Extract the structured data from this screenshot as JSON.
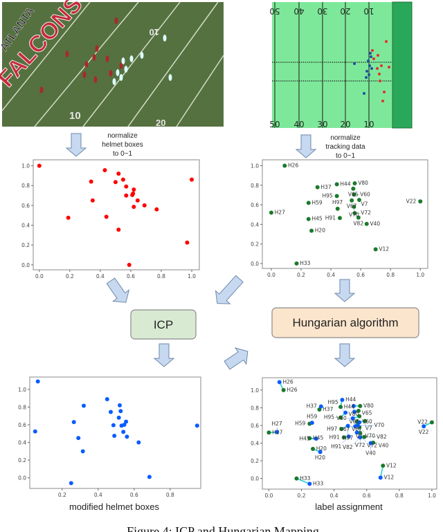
{
  "photo": {
    "logo_text_1": "ATLANTA",
    "logo_text_2": "FALCONS",
    "yard_numbers": [
      "10",
      "10",
      "20"
    ]
  },
  "field": {
    "yard_numbers": [
      "50",
      "40",
      "30",
      "20",
      "10"
    ],
    "colors": {
      "field": "#7ee89a",
      "endzone": "#2aa85a",
      "helmet_team_a": "#e03030",
      "helmet_team_b": "#1f4fa0"
    }
  },
  "notes": {
    "left": [
      "normalize",
      "helmet boxes",
      "to 0~1"
    ],
    "right": [
      "normalize",
      "tracking data",
      "to 0~1"
    ]
  },
  "boxes": {
    "icp": {
      "label": "ICP",
      "fill": "#d9ead3"
    },
    "hungarian": {
      "label": "Hungarian algorithm",
      "fill": "#fce5cd"
    }
  },
  "caption": "Figure 4: ICP and Hungarian Mapping",
  "chart_data": [
    {
      "id": "helmet-normalized",
      "type": "scatter",
      "color": "#ff0000",
      "xlim": [
        -0.04,
        1.05
      ],
      "ylim": [
        -0.05,
        1.06
      ],
      "xticks": [
        0,
        0.2,
        0.4,
        0.6,
        0.8,
        1.0
      ],
      "yticks": [
        0,
        0.2,
        0.4,
        0.6,
        0.8,
        1.0
      ],
      "xlabel": "",
      "points": [
        [
          0,
          1
        ],
        [
          0.43,
          0.955
        ],
        [
          0.52,
          0.92
        ],
        [
          0.34,
          0.84
        ],
        [
          0.5,
          0.835
        ],
        [
          0.55,
          0.86
        ],
        [
          0.57,
          0.79
        ],
        [
          0.62,
          0.76
        ],
        [
          0.615,
          0.72
        ],
        [
          0.61,
          0.705
        ],
        [
          0.57,
          0.7
        ],
        [
          0.35,
          0.65
        ],
        [
          0.645,
          0.65
        ],
        [
          0.69,
          0.6
        ],
        [
          0.62,
          0.585
        ],
        [
          0.77,
          0.56
        ],
        [
          0.19,
          0.475
        ],
        [
          0.44,
          0.485
        ],
        [
          0.52,
          0.355
        ],
        [
          0.97,
          0.225
        ],
        [
          0.59,
          0
        ],
        [
          1.0,
          0.86
        ]
      ]
    },
    {
      "id": "tracking-normalized",
      "type": "scatter",
      "color": "#1a7a2a",
      "xlim": [
        -0.06,
        1.05
      ],
      "ylim": [
        -0.05,
        1.06
      ],
      "xticks": [
        0,
        0.2,
        0.4,
        0.6,
        0.8,
        1.0
      ],
      "yticks": [
        0,
        0.2,
        0.4,
        0.6,
        0.8,
        1.0
      ],
      "xlabel": "",
      "points": [
        {
          "label": "H26",
          "x": 0.09,
          "y": 1.0
        },
        {
          "label": "H37",
          "x": 0.31,
          "y": 0.78
        },
        {
          "label": "H44",
          "x": 0.44,
          "y": 0.81
        },
        {
          "label": "V80",
          "x": 0.56,
          "y": 0.82
        },
        {
          "label": "V65",
          "x": 0.55,
          "y": 0.765
        },
        {
          "label": "V60",
          "x": 0.555,
          "y": 0.705
        },
        {
          "label": "H95",
          "x": 0.44,
          "y": 0.69
        },
        {
          "label": "V67",
          "x": 0.54,
          "y": 0.645
        },
        {
          "label": "V7",
          "x": 0.59,
          "y": 0.65
        },
        {
          "label": "V22",
          "x": 1.0,
          "y": 0.635
        },
        {
          "label": "H59",
          "x": 0.25,
          "y": 0.62
        },
        {
          "label": "H97",
          "x": 0.445,
          "y": 0.56
        },
        {
          "label": "V70",
          "x": 0.555,
          "y": 0.58
        },
        {
          "label": "H27",
          "x": 0.0,
          "y": 0.52
        },
        {
          "label": "V72",
          "x": 0.56,
          "y": 0.515
        },
        {
          "label": "V82",
          "x": 0.585,
          "y": 0.47
        },
        {
          "label": "H91",
          "x": 0.46,
          "y": 0.465
        },
        {
          "label": "H45",
          "x": 0.25,
          "y": 0.455
        },
        {
          "label": "V40",
          "x": 0.64,
          "y": 0.405
        },
        {
          "label": "H20",
          "x": 0.27,
          "y": 0.335
        },
        {
          "label": "V12",
          "x": 0.7,
          "y": 0.145
        },
        {
          "label": "H33",
          "x": 0.17,
          "y": 0.0
        }
      ]
    },
    {
      "id": "modified-helmet-boxes",
      "type": "scatter",
      "color": "#0a5cff",
      "xlim": [
        0.02,
        0.97
      ],
      "ylim": [
        -0.12,
        1.14
      ],
      "xticks": [
        0.2,
        0.4,
        0.6,
        0.8
      ],
      "yticks": [
        0,
        0.2,
        0.4,
        0.6,
        0.8,
        1.0
      ],
      "xlabel": "modified helmet boxes",
      "points": [
        [
          0.065,
          1.09
        ],
        [
          0.05,
          0.525
        ],
        [
          0.45,
          0.89
        ],
        [
          0.32,
          0.815
        ],
        [
          0.52,
          0.82
        ],
        [
          0.47,
          0.745
        ],
        [
          0.525,
          0.755
        ],
        [
          0.515,
          0.68
        ],
        [
          0.265,
          0.63
        ],
        [
          0.555,
          0.635
        ],
        [
          0.485,
          0.595
        ],
        [
          0.53,
          0.59
        ],
        [
          0.545,
          0.6
        ],
        [
          0.95,
          0.59
        ],
        [
          0.29,
          0.45
        ],
        [
          0.49,
          0.475
        ],
        [
          0.54,
          0.52
        ],
        [
          0.56,
          0.465
        ],
        [
          0.625,
          0.4
        ],
        [
          0.315,
          0.3
        ],
        [
          0.25,
          -0.06
        ],
        [
          0.685,
          0.01
        ]
      ]
    },
    {
      "id": "label-assignment",
      "type": "scatter",
      "xlim": [
        -0.04,
        1.03
      ],
      "ylim": [
        -0.12,
        1.14
      ],
      "xticks": [
        0,
        0.2,
        0.4,
        0.6,
        0.8,
        1.0
      ],
      "yticks": [
        0,
        0.2,
        0.4,
        0.6,
        0.8,
        1.0
      ],
      "xlabel": "label assignment",
      "colors": {
        "tracking": "#1a7a2a",
        "helmet": "#0a5cff",
        "link": "#22d3d3"
      },
      "pairs": [
        {
          "label": "H26",
          "tracking": [
            0.09,
            1.0
          ],
          "helmet": [
            0.065,
            1.09
          ]
        },
        {
          "label": "H37",
          "tracking": [
            0.31,
            0.78
          ],
          "helmet": [
            0.32,
            0.815
          ]
        },
        {
          "label": "H44",
          "tracking": [
            0.44,
            0.81
          ],
          "helmet": [
            0.45,
            0.89
          ]
        },
        {
          "label": "V80",
          "tracking": [
            0.56,
            0.82
          ],
          "helmet": [
            0.52,
            0.82
          ]
        },
        {
          "label": "V65",
          "tracking": [
            0.55,
            0.765
          ],
          "helmet": [
            0.525,
            0.755
          ]
        },
        {
          "label": "V60",
          "tracking": [
            0.555,
            0.705
          ],
          "helmet": [
            0.515,
            0.68
          ]
        },
        {
          "label": "H95",
          "tracking": [
            0.44,
            0.69
          ],
          "helmet": [
            0.47,
            0.745
          ]
        },
        {
          "label": "V67",
          "tracking": [
            0.54,
            0.645
          ],
          "helmet": [
            0.53,
            0.59
          ]
        },
        {
          "label": "V7",
          "tracking": [
            0.59,
            0.65
          ],
          "helmet": [
            0.555,
            0.635
          ]
        },
        {
          "label": "V22",
          "tracking": [
            1.0,
            0.635
          ],
          "helmet": [
            0.95,
            0.59
          ]
        },
        {
          "label": "H59",
          "tracking": [
            0.25,
            0.62
          ],
          "helmet": [
            0.265,
            0.63
          ]
        },
        {
          "label": "H97",
          "tracking": [
            0.445,
            0.56
          ],
          "helmet": [
            0.485,
            0.595
          ]
        },
        {
          "label": "V70",
          "tracking": [
            0.555,
            0.58
          ],
          "helmet": [
            0.545,
            0.6
          ]
        },
        {
          "label": "H27",
          "tracking": [
            0.0,
            0.52
          ],
          "helmet": [
            0.05,
            0.525
          ]
        },
        {
          "label": "V72",
          "tracking": [
            0.56,
            0.515
          ],
          "helmet": [
            0.54,
            0.52
          ]
        },
        {
          "label": "V82",
          "tracking": [
            0.585,
            0.47
          ],
          "helmet": [
            0.56,
            0.465
          ]
        },
        {
          "label": "H91",
          "tracking": [
            0.46,
            0.465
          ],
          "helmet": [
            0.49,
            0.475
          ]
        },
        {
          "label": "H45",
          "tracking": [
            0.25,
            0.455
          ],
          "helmet": [
            0.29,
            0.45
          ]
        },
        {
          "label": "V40",
          "tracking": [
            0.64,
            0.405
          ],
          "helmet": [
            0.625,
            0.4
          ]
        },
        {
          "label": "H20",
          "tracking": [
            0.27,
            0.335
          ],
          "helmet": [
            0.315,
            0.3
          ]
        },
        {
          "label": "V12",
          "tracking": [
            0.7,
            0.145
          ],
          "helmet": [
            0.685,
            0.01
          ]
        },
        {
          "label": "H33",
          "tracking": [
            0.17,
            0.0
          ],
          "helmet": [
            0.25,
            -0.06
          ]
        }
      ]
    }
  ]
}
